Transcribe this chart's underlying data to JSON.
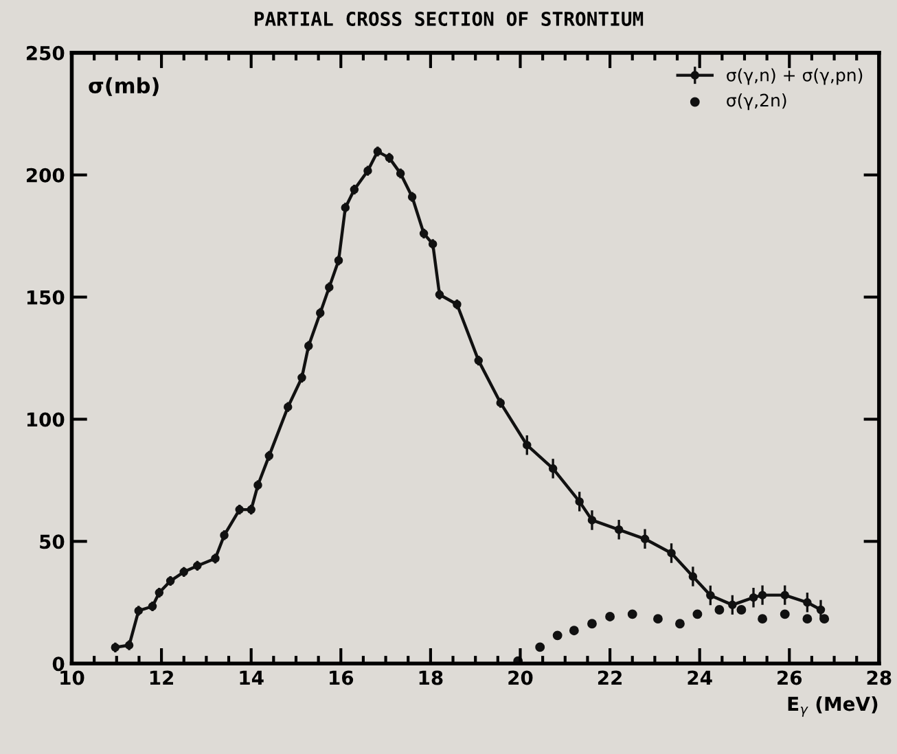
{
  "chart_data": {
    "type": "line",
    "title": "PARTIAL CROSS SECTION OF STRONTIUM",
    "xlabel": "E$_{γ}$ (MeV)",
    "ylabel": "σ(mb)",
    "xlim": [
      10,
      28
    ],
    "xticks": [
      10,
      12,
      14,
      16,
      18,
      20,
      22,
      24,
      26,
      28
    ],
    "ylim": [
      0,
      250
    ],
    "yticks": [
      0,
      50,
      100,
      150,
      200,
      250
    ],
    "grid": false,
    "legend": "top right",
    "marker": "circle",
    "line_style": "solid",
    "series": [
      {
        "name": "σ(γ,n) + σ(γ,pn)",
        "color": "#111111",
        "x": [
          10.97,
          11.28,
          11.49,
          11.8,
          11.95,
          12.2,
          12.5,
          12.8,
          13.2,
          13.4,
          13.74,
          14.0,
          14.15,
          14.4,
          14.82,
          15.13,
          15.28,
          15.54,
          15.74,
          15.95,
          16.1,
          16.3,
          16.6,
          16.82,
          17.08,
          17.33,
          17.59,
          17.85,
          18.05,
          18.2,
          18.59,
          19.07,
          19.56,
          20.15,
          20.73,
          21.32,
          21.6,
          22.2,
          22.78,
          23.37,
          23.85,
          24.24,
          24.73,
          25.2,
          25.4,
          25.9,
          26.4,
          26.7
        ],
        "values": [
          6.6,
          7.5,
          21.6,
          23.4,
          29,
          33.8,
          37.5,
          40,
          43,
          52.5,
          63,
          63,
          73,
          85,
          105,
          117,
          130,
          143.5,
          154,
          165,
          186.6,
          194,
          201.7,
          209.6,
          207,
          200.6,
          191,
          176,
          171.7,
          151,
          147,
          124,
          106.7,
          89.4,
          79.8,
          66.3,
          58.7,
          54.8,
          51,
          45.2,
          35.6,
          27.9,
          24,
          27,
          28,
          28,
          25,
          22
        ],
        "errors": [
          2,
          2,
          2,
          2,
          2,
          2,
          2,
          2,
          2,
          2,
          2,
          2,
          2,
          2,
          2,
          2,
          2,
          2,
          2,
          2,
          2,
          2,
          2,
          2,
          2,
          2,
          2,
          2,
          2,
          2,
          2,
          2,
          2,
          4,
          4,
          4,
          4,
          4,
          4,
          4,
          4,
          4,
          4,
          4,
          4,
          4,
          4,
          4
        ]
      },
      {
        "name": "σ(γ,2n)",
        "type": "scatter",
        "color": "#111111",
        "x": [
          19.95,
          20.44,
          20.83,
          21.2,
          21.6,
          22.0,
          22.5,
          23.07,
          23.56,
          23.95,
          24.44,
          24.93,
          25.4,
          25.9,
          26.4,
          26.78
        ],
        "values": [
          1,
          6.7,
          11.5,
          13.5,
          16.3,
          19.2,
          20.2,
          18.3,
          16.3,
          20.2,
          22,
          22,
          18.3,
          20.2,
          18.3,
          18.3
        ]
      }
    ]
  }
}
